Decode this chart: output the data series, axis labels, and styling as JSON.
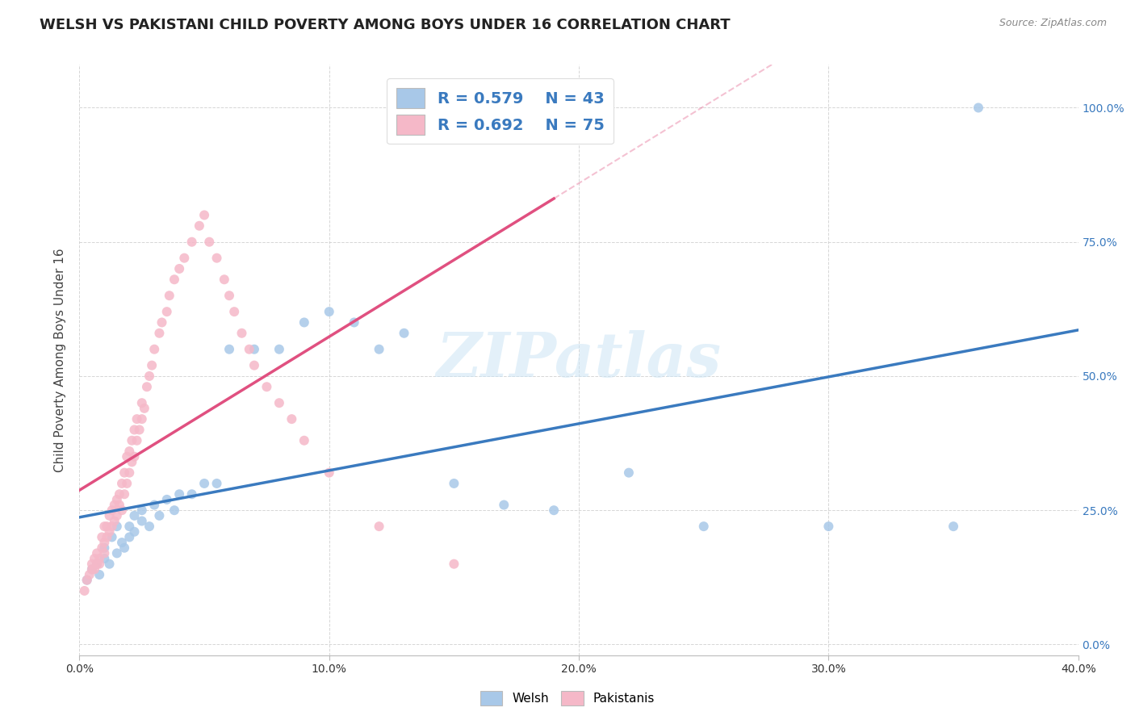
{
  "title": "WELSH VS PAKISTANI CHILD POVERTY AMONG BOYS UNDER 16 CORRELATION CHART",
  "source": "Source: ZipAtlas.com",
  "ylabel": "Child Poverty Among Boys Under 16",
  "xlim": [
    0.0,
    0.4
  ],
  "ylim": [
    -0.02,
    1.08
  ],
  "x_ticks": [
    0.0,
    0.1,
    0.2,
    0.3,
    0.4
  ],
  "x_tick_labels": [
    "0.0%",
    "10.0%",
    "20.0%",
    "30.0%",
    "40.0%"
  ],
  "y_ticks": [
    0.0,
    0.25,
    0.5,
    0.75,
    1.0
  ],
  "y_tick_labels": [
    "0.0%",
    "25.0%",
    "50.0%",
    "75.0%",
    "100.0%"
  ],
  "welsh_color": "#a8c8e8",
  "pakistani_color": "#f5b8c8",
  "welsh_line_color": "#3a7abf",
  "pakistani_line_color": "#e05080",
  "pakistani_trend_dashed_color": "#d0a0b0",
  "watermark": "ZIPatlas",
  "welsh_r": "0.579",
  "welsh_n": "43",
  "pakistani_r": "0.692",
  "pakistani_n": "75",
  "background_color": "#ffffff",
  "grid_color": "#cccccc",
  "axis_color": "#3a7abf",
  "title_fontsize": 13,
  "label_fontsize": 11,
  "tick_fontsize": 10,
  "marker_size": 75,
  "welsh_scatter_x": [
    0.003,
    0.005,
    0.007,
    0.008,
    0.01,
    0.01,
    0.012,
    0.013,
    0.015,
    0.015,
    0.017,
    0.018,
    0.02,
    0.02,
    0.022,
    0.022,
    0.025,
    0.025,
    0.028,
    0.03,
    0.032,
    0.035,
    0.038,
    0.04,
    0.045,
    0.05,
    0.055,
    0.06,
    0.07,
    0.08,
    0.09,
    0.1,
    0.11,
    0.12,
    0.13,
    0.15,
    0.17,
    0.19,
    0.22,
    0.25,
    0.3,
    0.35,
    0.36
  ],
  "welsh_scatter_y": [
    0.12,
    0.14,
    0.15,
    0.13,
    0.16,
    0.18,
    0.15,
    0.2,
    0.17,
    0.22,
    0.19,
    0.18,
    0.2,
    0.22,
    0.24,
    0.21,
    0.23,
    0.25,
    0.22,
    0.26,
    0.24,
    0.27,
    0.25,
    0.28,
    0.28,
    0.3,
    0.3,
    0.55,
    0.55,
    0.55,
    0.6,
    0.62,
    0.6,
    0.55,
    0.58,
    0.3,
    0.26,
    0.25,
    0.32,
    0.22,
    0.22,
    0.22,
    1.0
  ],
  "pakistani_scatter_x": [
    0.002,
    0.003,
    0.004,
    0.005,
    0.005,
    0.006,
    0.006,
    0.007,
    0.007,
    0.008,
    0.008,
    0.009,
    0.009,
    0.01,
    0.01,
    0.01,
    0.011,
    0.011,
    0.012,
    0.012,
    0.013,
    0.013,
    0.014,
    0.014,
    0.015,
    0.015,
    0.016,
    0.016,
    0.017,
    0.017,
    0.018,
    0.018,
    0.019,
    0.019,
    0.02,
    0.02,
    0.021,
    0.021,
    0.022,
    0.022,
    0.023,
    0.023,
    0.024,
    0.025,
    0.025,
    0.026,
    0.027,
    0.028,
    0.029,
    0.03,
    0.032,
    0.033,
    0.035,
    0.036,
    0.038,
    0.04,
    0.042,
    0.045,
    0.048,
    0.05,
    0.052,
    0.055,
    0.058,
    0.06,
    0.062,
    0.065,
    0.068,
    0.07,
    0.075,
    0.08,
    0.085,
    0.09,
    0.1,
    0.12,
    0.15
  ],
  "pakistani_scatter_y": [
    0.1,
    0.12,
    0.13,
    0.14,
    0.15,
    0.14,
    0.16,
    0.15,
    0.17,
    0.15,
    0.16,
    0.18,
    0.2,
    0.17,
    0.19,
    0.22,
    0.2,
    0.22,
    0.21,
    0.24,
    0.22,
    0.25,
    0.23,
    0.26,
    0.24,
    0.27,
    0.26,
    0.28,
    0.25,
    0.3,
    0.28,
    0.32,
    0.3,
    0.35,
    0.32,
    0.36,
    0.34,
    0.38,
    0.35,
    0.4,
    0.38,
    0.42,
    0.4,
    0.42,
    0.45,
    0.44,
    0.48,
    0.5,
    0.52,
    0.55,
    0.58,
    0.6,
    0.62,
    0.65,
    0.68,
    0.7,
    0.72,
    0.75,
    0.78,
    0.8,
    0.75,
    0.72,
    0.68,
    0.65,
    0.62,
    0.58,
    0.55,
    0.52,
    0.48,
    0.45,
    0.42,
    0.38,
    0.32,
    0.22,
    0.15
  ]
}
